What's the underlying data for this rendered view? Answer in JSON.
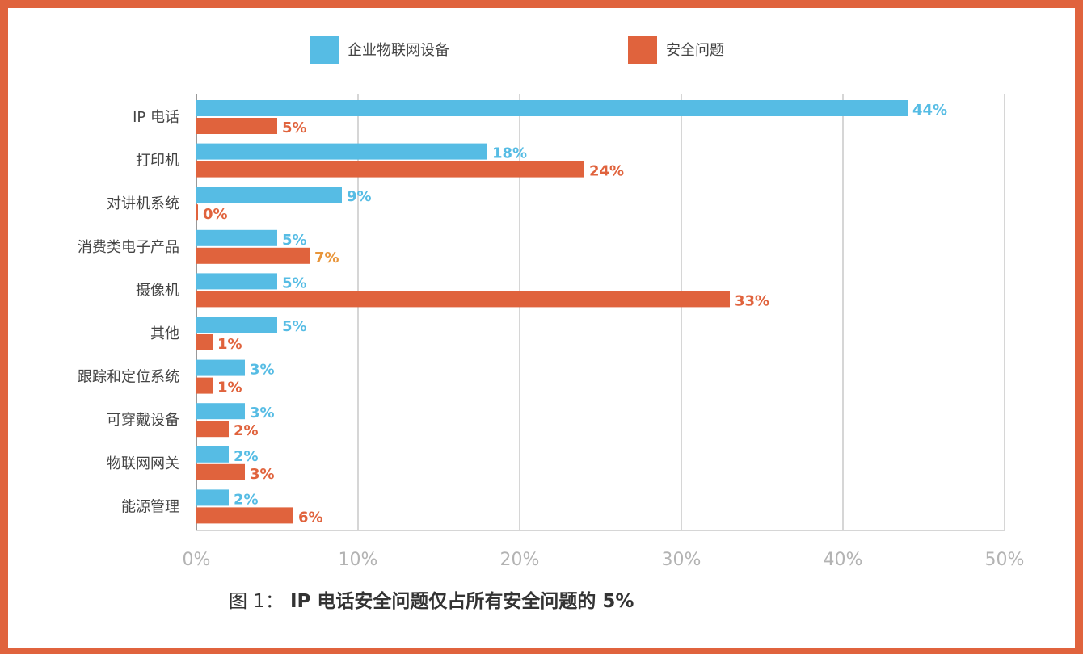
{
  "chart_data": {
    "type": "bar",
    "orientation": "horizontal",
    "categories": [
      "IP 电话",
      "打印机",
      "对讲机系统",
      "消费类电子产品",
      "摄像机",
      "其他",
      "跟踪和定位系统",
      "可穿戴设备",
      "物联网网关",
      "能源管理"
    ],
    "series": [
      {
        "name": "企业物联网设备",
        "color": "#56BCE4",
        "values": [
          44,
          18,
          9,
          5,
          5,
          5,
          3,
          3,
          2,
          2
        ]
      },
      {
        "name": "安全问题",
        "color": "#E0633D",
        "values": [
          5,
          24,
          0,
          7,
          33,
          1,
          1,
          2,
          3,
          6
        ]
      }
    ],
    "data_labels": {
      "series_0": [
        "44%",
        "18%",
        "9%",
        "5%",
        "5%",
        "5%",
        "3%",
        "3%",
        "2%",
        "2%"
      ],
      "series_1": [
        "5%",
        "24%",
        "0%",
        "7%",
        "33%",
        "1%",
        "1%",
        "2%",
        "3%",
        "6%"
      ]
    },
    "xlim": [
      0,
      50
    ],
    "xticks": [
      0,
      10,
      20,
      30,
      40,
      50
    ],
    "xtick_labels": [
      "0%",
      "10%",
      "20%",
      "30%",
      "40%",
      "50%"
    ],
    "xlabel": "",
    "ylabel": "",
    "grid": "vertical",
    "legend_position": "top-center",
    "caption_lead": "图 1：",
    "caption": "IP 电话安全问题仅占所有安全问题的 5%"
  },
  "colors": {
    "frame": "#E0633D",
    "label_alt": "#E8953A",
    "grid": "#C8C8C8",
    "axis_text": "#B3B3B3"
  }
}
